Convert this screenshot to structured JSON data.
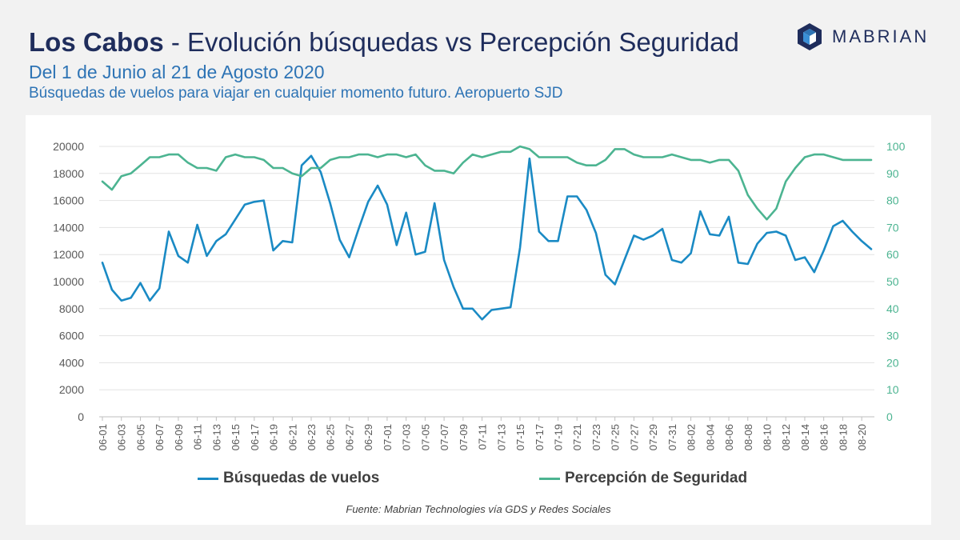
{
  "header": {
    "title_bold": "Los Cabos",
    "title_rest": "- Evolución búsquedas vs Percepción Seguridad",
    "subtitle": "Del 1 de Junio al 21 de Agosto 2020",
    "subtitle2": "Búsquedas de vuelos para viajar en cualquier momento futuro. Aeropuerto SJD"
  },
  "logo": {
    "text": "MABRIAN",
    "color": "#1f2d5c",
    "accent": "#2e74b5"
  },
  "source": "Fuente: Mabrian Technologies vía GDS y Redes Sociales",
  "chart_data": {
    "type": "line",
    "x_tick_labels": [
      "06-01",
      "06-03",
      "06-05",
      "06-07",
      "06-09",
      "06-11",
      "06-13",
      "06-15",
      "06-17",
      "06-19",
      "06-21",
      "06-23",
      "06-25",
      "06-27",
      "06-29",
      "07-01",
      "07-03",
      "07-05",
      "07-07",
      "07-09",
      "07-11",
      "07-13",
      "07-15",
      "07-17",
      "07-19",
      "07-21",
      "07-23",
      "07-25",
      "07-27",
      "07-29",
      "07-31",
      "08-02",
      "08-04",
      "08-06",
      "08-08",
      "08-10",
      "08-12",
      "08-14",
      "08-16",
      "08-18",
      "08-20"
    ],
    "x_start": "06-01",
    "x_end": "08-21",
    "y_left": {
      "min": 0,
      "max": 20000,
      "step": 2000,
      "ticks": [
        "0",
        "2000",
        "4000",
        "6000",
        "8000",
        "10000",
        "12000",
        "14000",
        "16000",
        "18000",
        "20000"
      ]
    },
    "y_right": {
      "min": 0,
      "max": 100,
      "step": 10,
      "ticks": [
        "0",
        "10",
        "20",
        "30",
        "40",
        "50",
        "60",
        "70",
        "80",
        "90",
        "100"
      ]
    },
    "grid": true,
    "legend_position": "bottom",
    "series": [
      {
        "name": "Búsquedas de vuelos",
        "axis": "left",
        "color": "#1a8ac4",
        "values": [
          11400,
          9400,
          8600,
          8800,
          9900,
          8600,
          9500,
          13700,
          11900,
          11400,
          14200,
          11900,
          13000,
          13500,
          14600,
          15700,
          15900,
          16000,
          12300,
          13000,
          12900,
          18600,
          19300,
          18100,
          15800,
          13100,
          11800,
          13900,
          15900,
          17100,
          15700,
          12700,
          15100,
          12000,
          12200,
          15800,
          11600,
          9600,
          8000,
          8000,
          7200,
          7900,
          8000,
          8100,
          12500,
          19100,
          13700,
          13000,
          13000,
          16300,
          16300,
          15300,
          13600,
          10500,
          9800,
          11600,
          13400,
          13100,
          13400,
          13900,
          11600,
          11400,
          12100,
          15200,
          13500,
          13400,
          14800,
          11400,
          11300,
          12800,
          13600,
          13700,
          13400,
          11600,
          11800,
          10700,
          12300,
          14100,
          14500,
          13700,
          13000,
          12400
        ]
      },
      {
        "name": "Percepción de Seguridad",
        "axis": "right",
        "color": "#4cb491",
        "values": [
          87,
          84,
          89,
          90,
          93,
          96,
          96,
          97,
          97,
          94,
          92,
          92,
          91,
          96,
          97,
          96,
          96,
          95,
          92,
          92,
          90,
          89,
          92,
          92,
          95,
          96,
          96,
          97,
          97,
          96,
          97,
          97,
          96,
          97,
          93,
          91,
          91,
          90,
          94,
          97,
          96,
          97,
          98,
          98,
          100,
          99,
          96,
          96,
          96,
          96,
          94,
          93,
          93,
          95,
          99,
          99,
          97,
          96,
          96,
          96,
          97,
          96,
          95,
          95,
          94,
          95,
          95,
          91,
          82,
          77,
          73,
          77,
          87,
          92,
          96,
          97,
          97,
          96,
          95,
          95,
          95,
          95
        ]
      }
    ]
  }
}
